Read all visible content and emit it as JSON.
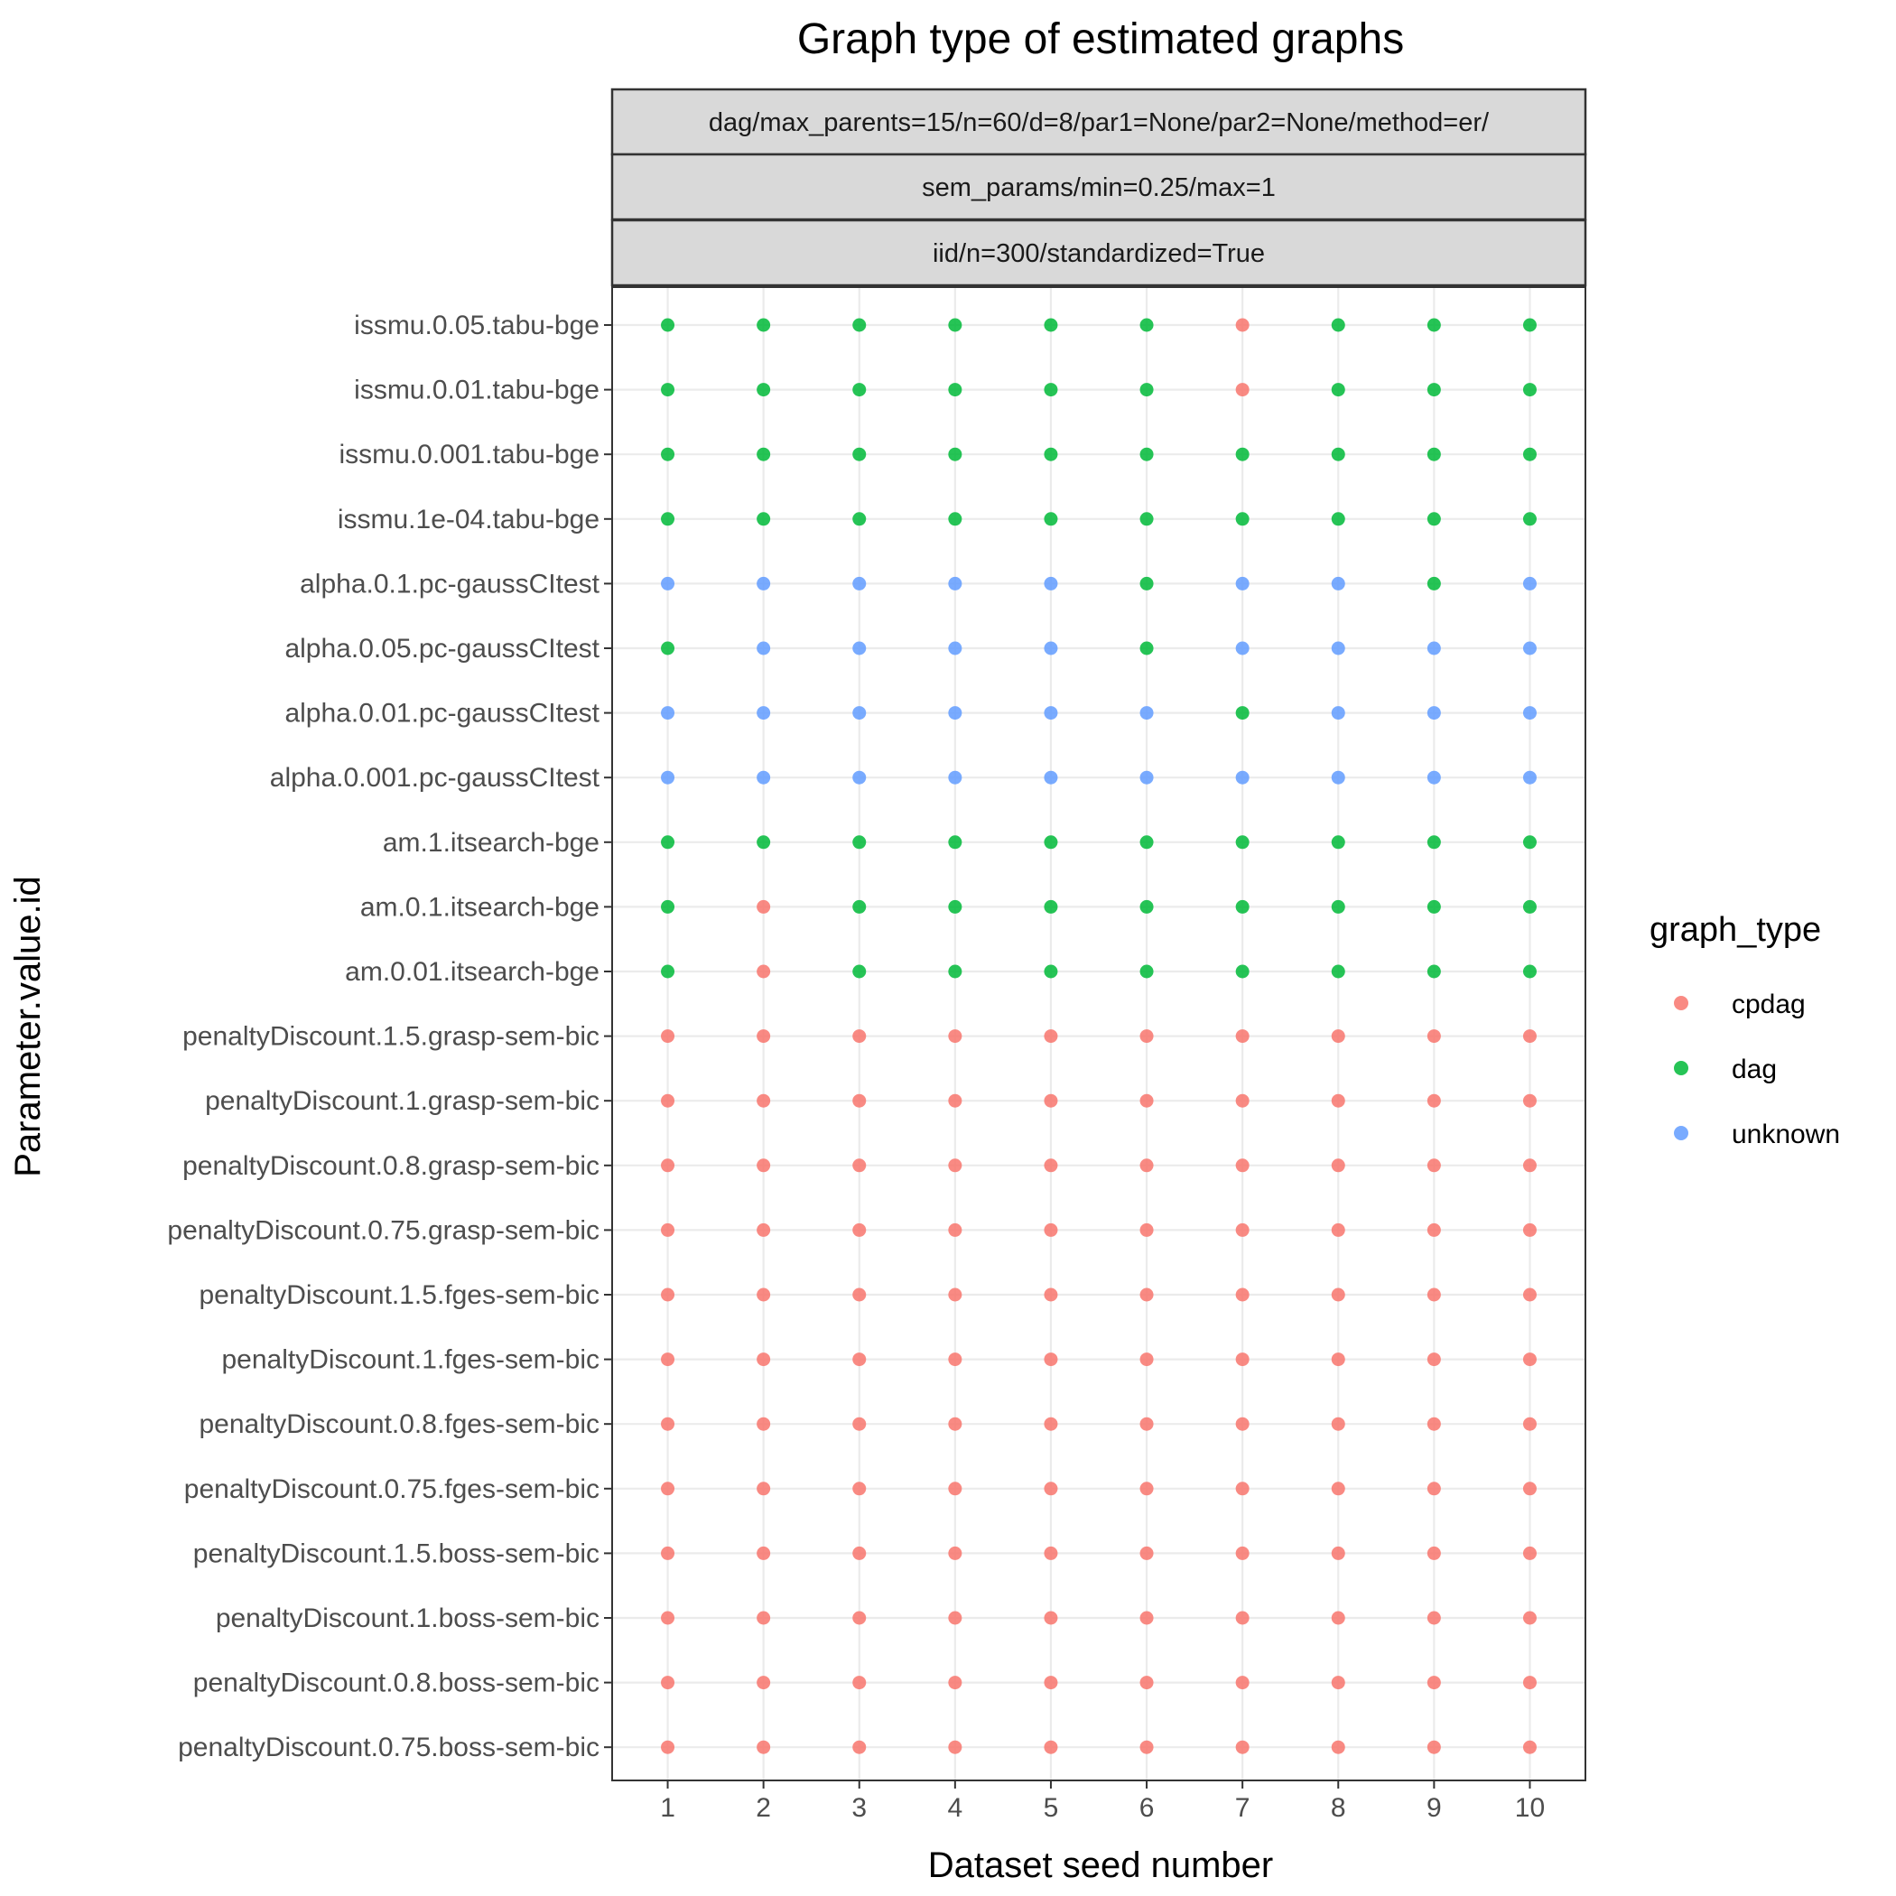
{
  "chart_data": {
    "type": "scatter",
    "title": "Graph type of estimated graphs",
    "xlabel": "Dataset seed number",
    "ylabel": "Parameter.value.id",
    "x": [
      1,
      2,
      3,
      4,
      5,
      6,
      7,
      8,
      9,
      10
    ],
    "xlim": [
      0.42,
      10.58
    ],
    "facet_strips": [
      "dag/max_parents=15/n=60/d=8/par1=None/par2=None/method=er/",
      "sem_params/min=0.25/max=1",
      "iid/n=300/standardized=True"
    ],
    "categories": [
      "issmu.0.05.tabu-bge",
      "issmu.0.01.tabu-bge",
      "issmu.0.001.tabu-bge",
      "issmu.1e-04.tabu-bge",
      "alpha.0.1.pc-gaussCItest",
      "alpha.0.05.pc-gaussCItest",
      "alpha.0.01.pc-gaussCItest",
      "alpha.0.001.pc-gaussCItest",
      "am.1.itsearch-bge",
      "am.0.1.itsearch-bge",
      "am.0.01.itsearch-bge",
      "penaltyDiscount.1.5.grasp-sem-bic",
      "penaltyDiscount.1.grasp-sem-bic",
      "penaltyDiscount.0.8.grasp-sem-bic",
      "penaltyDiscount.0.75.grasp-sem-bic",
      "penaltyDiscount.1.5.fges-sem-bic",
      "penaltyDiscount.1.fges-sem-bic",
      "penaltyDiscount.0.8.fges-sem-bic",
      "penaltyDiscount.0.75.fges-sem-bic",
      "penaltyDiscount.1.5.boss-sem-bic",
      "penaltyDiscount.1.boss-sem-bic",
      "penaltyDiscount.0.8.boss-sem-bic",
      "penaltyDiscount.0.75.boss-sem-bic"
    ],
    "values": [
      [
        "dag",
        "dag",
        "dag",
        "dag",
        "dag",
        "dag",
        "cpdag",
        "dag",
        "dag",
        "dag"
      ],
      [
        "dag",
        "dag",
        "dag",
        "dag",
        "dag",
        "dag",
        "cpdag",
        "dag",
        "dag",
        "dag"
      ],
      [
        "dag",
        "dag",
        "dag",
        "dag",
        "dag",
        "dag",
        "dag",
        "dag",
        "dag",
        "dag"
      ],
      [
        "dag",
        "dag",
        "dag",
        "dag",
        "dag",
        "dag",
        "dag",
        "dag",
        "dag",
        "dag"
      ],
      [
        "unknown",
        "unknown",
        "unknown",
        "unknown",
        "unknown",
        "dag",
        "unknown",
        "unknown",
        "dag",
        "unknown"
      ],
      [
        "dag",
        "unknown",
        "unknown",
        "unknown",
        "unknown",
        "dag",
        "unknown",
        "unknown",
        "unknown",
        "unknown"
      ],
      [
        "unknown",
        "unknown",
        "unknown",
        "unknown",
        "unknown",
        "unknown",
        "dag",
        "unknown",
        "unknown",
        "unknown"
      ],
      [
        "unknown",
        "unknown",
        "unknown",
        "unknown",
        "unknown",
        "unknown",
        "unknown",
        "unknown",
        "unknown",
        "unknown"
      ],
      [
        "dag",
        "dag",
        "dag",
        "dag",
        "dag",
        "dag",
        "dag",
        "dag",
        "dag",
        "dag"
      ],
      [
        "dag",
        "cpdag",
        "dag",
        "dag",
        "dag",
        "dag",
        "dag",
        "dag",
        "dag",
        "dag"
      ],
      [
        "dag",
        "cpdag",
        "dag",
        "dag",
        "dag",
        "dag",
        "dag",
        "dag",
        "dag",
        "dag"
      ],
      [
        "cpdag",
        "cpdag",
        "cpdag",
        "cpdag",
        "cpdag",
        "cpdag",
        "cpdag",
        "cpdag",
        "cpdag",
        "cpdag"
      ],
      [
        "cpdag",
        "cpdag",
        "cpdag",
        "cpdag",
        "cpdag",
        "cpdag",
        "cpdag",
        "cpdag",
        "cpdag",
        "cpdag"
      ],
      [
        "cpdag",
        "cpdag",
        "cpdag",
        "cpdag",
        "cpdag",
        "cpdag",
        "cpdag",
        "cpdag",
        "cpdag",
        "cpdag"
      ],
      [
        "cpdag",
        "cpdag",
        "cpdag",
        "cpdag",
        "cpdag",
        "cpdag",
        "cpdag",
        "cpdag",
        "cpdag",
        "cpdag"
      ],
      [
        "cpdag",
        "cpdag",
        "cpdag",
        "cpdag",
        "cpdag",
        "cpdag",
        "cpdag",
        "cpdag",
        "cpdag",
        "cpdag"
      ],
      [
        "cpdag",
        "cpdag",
        "cpdag",
        "cpdag",
        "cpdag",
        "cpdag",
        "cpdag",
        "cpdag",
        "cpdag",
        "cpdag"
      ],
      [
        "cpdag",
        "cpdag",
        "cpdag",
        "cpdag",
        "cpdag",
        "cpdag",
        "cpdag",
        "cpdag",
        "cpdag",
        "cpdag"
      ],
      [
        "cpdag",
        "cpdag",
        "cpdag",
        "cpdag",
        "cpdag",
        "cpdag",
        "cpdag",
        "cpdag",
        "cpdag",
        "cpdag"
      ],
      [
        "cpdag",
        "cpdag",
        "cpdag",
        "cpdag",
        "cpdag",
        "cpdag",
        "cpdag",
        "cpdag",
        "cpdag",
        "cpdag"
      ],
      [
        "cpdag",
        "cpdag",
        "cpdag",
        "cpdag",
        "cpdag",
        "cpdag",
        "cpdag",
        "cpdag",
        "cpdag",
        "cpdag"
      ],
      [
        "cpdag",
        "cpdag",
        "cpdag",
        "cpdag",
        "cpdag",
        "cpdag",
        "cpdag",
        "cpdag",
        "cpdag",
        "cpdag"
      ],
      [
        "cpdag",
        "cpdag",
        "cpdag",
        "cpdag",
        "cpdag",
        "cpdag",
        "cpdag",
        "cpdag",
        "cpdag",
        "cpdag"
      ]
    ],
    "legend": {
      "title": "graph_type",
      "position": "right",
      "entries": [
        {
          "name": "cpdag",
          "color": "#f8766d"
        },
        {
          "name": "dag",
          "color": "#00ba38"
        },
        {
          "name": "unknown",
          "color": "#619cff"
        }
      ]
    },
    "grid": true
  }
}
